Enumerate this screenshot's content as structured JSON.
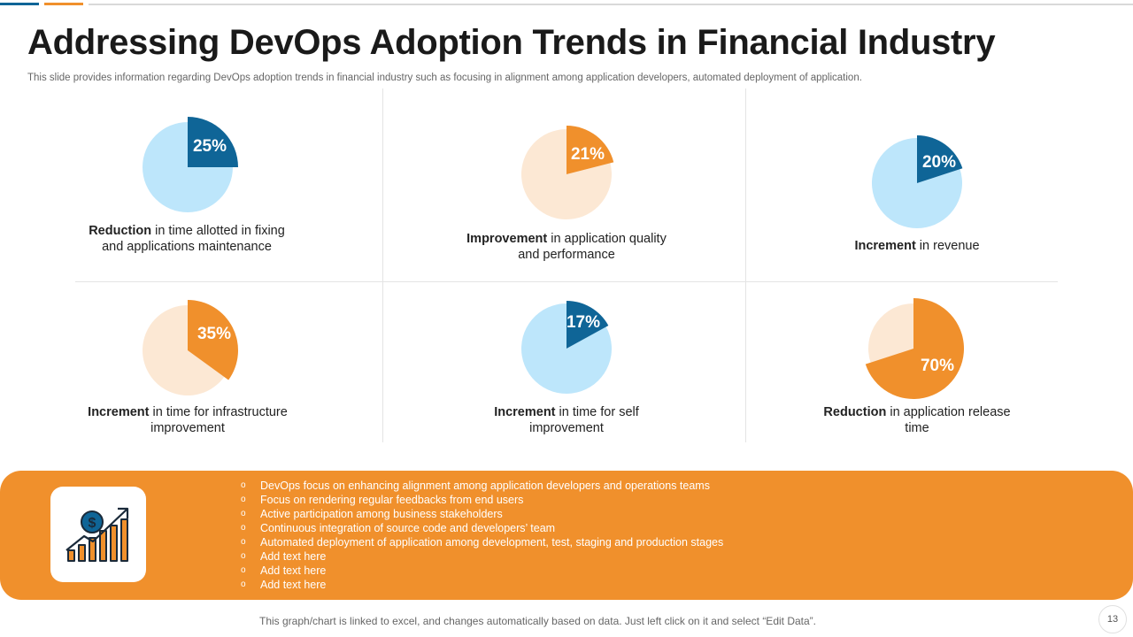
{
  "slide": {
    "title": "Addressing DevOps Adoption Trends in Financial Industry",
    "subtitle": "This slide provides information regarding DevOps adoption trends in financial industry such as focusing in alignment among application developers, automated deployment of application.",
    "footnote": "This graph/chart is linked to excel, and changes automatically based on data. Just left click on it and select “Edit Data”.",
    "page_number": "13"
  },
  "colors": {
    "orange": "#f0902c",
    "light_orange": "#fce8d4",
    "blue": "#0f6597",
    "light_blue": "#bde6fb"
  },
  "chart_data": [
    {
      "type": "pie",
      "label": "25%",
      "value": 25,
      "highlight": "blue",
      "caption_bold": "Reduction",
      "caption_rest": " in time allotted in fixing and applications maintenance"
    },
    {
      "type": "pie",
      "label": "21%",
      "value": 21,
      "highlight": "orange",
      "caption_bold": "Improvement",
      "caption_rest": " in application quality and performance"
    },
    {
      "type": "pie",
      "label": "20%",
      "value": 20,
      "highlight": "blue",
      "caption_bold": "Increment",
      "caption_rest": " in revenue"
    },
    {
      "type": "pie",
      "label": "35%",
      "value": 35,
      "highlight": "orange",
      "caption_bold": "Increment",
      "caption_rest": " in time for infrastructure improvement"
    },
    {
      "type": "pie",
      "label": "17%",
      "value": 17,
      "highlight": "blue",
      "caption_bold": "Increment",
      "caption_rest": " in time for self improvement"
    },
    {
      "type": "pie",
      "label": "70%",
      "value": 70,
      "highlight": "orange",
      "caption_bold": "Reduction",
      "caption_rest": " in application release time"
    }
  ],
  "banner": {
    "icon": "growth-chart-dollar-icon",
    "bullet_glyph": "o",
    "bullets": [
      "DevOps  focus  on  enhancing  alignment  among  application  developers   and  operations  teams",
      "Focus  on  rendering  regular  feedbacks  from  end  users",
      "Active  participation  among  business  stakeholders",
      "Continuous  integration  of  source  code  and  developers’  team",
      "Automated  deployment  of  application  among  development,  test,  staging  and  production  stages",
      "Add text here",
      "Add text here",
      "Add text here"
    ]
  }
}
